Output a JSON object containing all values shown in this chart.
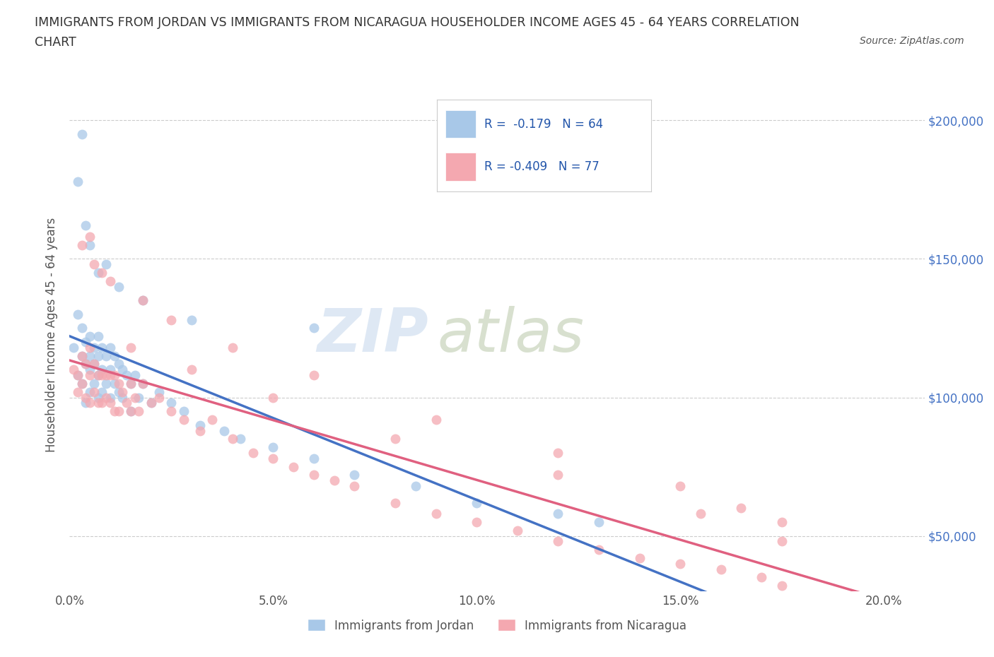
{
  "title_line1": "IMMIGRANTS FROM JORDAN VS IMMIGRANTS FROM NICARAGUA HOUSEHOLDER INCOME AGES 45 - 64 YEARS CORRELATION",
  "title_line2": "CHART",
  "source_text": "Source: ZipAtlas.com",
  "ylabel": "Householder Income Ages 45 - 64 years",
  "xlim": [
    0.0,
    0.21
  ],
  "ylim": [
    30000,
    215000
  ],
  "yticks": [
    50000,
    100000,
    150000,
    200000
  ],
  "ytick_labels": [
    "$50,000",
    "$100,000",
    "$150,000",
    "$200,000"
  ],
  "xticks": [
    0.0,
    0.05,
    0.1,
    0.15,
    0.2
  ],
  "xtick_labels": [
    "0.0%",
    "5.0%",
    "10.0%",
    "15.0%",
    "20.0%"
  ],
  "jordan_color": "#a8c8e8",
  "nicaragua_color": "#f4a8b0",
  "jordan_line_color": "#4472c4",
  "nicaragua_line_color": "#e06080",
  "jordan_R": -0.179,
  "jordan_N": 64,
  "nicaragua_R": -0.409,
  "nicaragua_N": 77,
  "background_color": "#ffffff",
  "grid_color": "#cccccc",
  "watermark_zip": "ZIP",
  "watermark_atlas": "atlas",
  "legend_label_jordan": "Immigrants from Jordan",
  "legend_label_nicaragua": "Immigrants from Nicaragua",
  "jordan_x": [
    0.001,
    0.002,
    0.002,
    0.003,
    0.003,
    0.003,
    0.004,
    0.004,
    0.004,
    0.005,
    0.005,
    0.005,
    0.005,
    0.006,
    0.006,
    0.006,
    0.007,
    0.007,
    0.007,
    0.007,
    0.008,
    0.008,
    0.008,
    0.009,
    0.009,
    0.01,
    0.01,
    0.01,
    0.011,
    0.011,
    0.012,
    0.012,
    0.013,
    0.013,
    0.014,
    0.015,
    0.015,
    0.016,
    0.017,
    0.018,
    0.02,
    0.022,
    0.025,
    0.028,
    0.032,
    0.038,
    0.042,
    0.05,
    0.06,
    0.07,
    0.085,
    0.1,
    0.12,
    0.13,
    0.002,
    0.003,
    0.004,
    0.005,
    0.007,
    0.009,
    0.012,
    0.018,
    0.03,
    0.06
  ],
  "jordan_y": [
    118000,
    130000,
    108000,
    125000,
    115000,
    105000,
    120000,
    112000,
    98000,
    122000,
    115000,
    110000,
    102000,
    118000,
    112000,
    105000,
    122000,
    115000,
    108000,
    100000,
    118000,
    110000,
    102000,
    115000,
    105000,
    118000,
    110000,
    100000,
    115000,
    105000,
    112000,
    102000,
    110000,
    100000,
    108000,
    105000,
    95000,
    108000,
    100000,
    105000,
    98000,
    102000,
    98000,
    95000,
    90000,
    88000,
    85000,
    82000,
    78000,
    72000,
    68000,
    62000,
    58000,
    55000,
    178000,
    195000,
    162000,
    155000,
    145000,
    148000,
    140000,
    135000,
    128000,
    125000
  ],
  "nicaragua_x": [
    0.001,
    0.002,
    0.002,
    0.003,
    0.003,
    0.004,
    0.004,
    0.005,
    0.005,
    0.005,
    0.006,
    0.006,
    0.007,
    0.007,
    0.008,
    0.008,
    0.009,
    0.009,
    0.01,
    0.01,
    0.011,
    0.011,
    0.012,
    0.012,
    0.013,
    0.014,
    0.015,
    0.015,
    0.016,
    0.017,
    0.018,
    0.02,
    0.022,
    0.025,
    0.028,
    0.032,
    0.035,
    0.04,
    0.045,
    0.05,
    0.055,
    0.06,
    0.065,
    0.07,
    0.08,
    0.09,
    0.1,
    0.11,
    0.12,
    0.13,
    0.14,
    0.15,
    0.16,
    0.17,
    0.175,
    0.003,
    0.006,
    0.01,
    0.018,
    0.025,
    0.04,
    0.06,
    0.09,
    0.12,
    0.15,
    0.165,
    0.175,
    0.005,
    0.008,
    0.015,
    0.03,
    0.05,
    0.08,
    0.12,
    0.155,
    0.175
  ],
  "nicaragua_y": [
    110000,
    108000,
    102000,
    115000,
    105000,
    112000,
    100000,
    118000,
    108000,
    98000,
    112000,
    102000,
    108000,
    98000,
    108000,
    98000,
    108000,
    100000,
    108000,
    98000,
    108000,
    95000,
    105000,
    95000,
    102000,
    98000,
    105000,
    95000,
    100000,
    95000,
    105000,
    98000,
    100000,
    95000,
    92000,
    88000,
    92000,
    85000,
    80000,
    78000,
    75000,
    72000,
    70000,
    68000,
    62000,
    58000,
    55000,
    52000,
    48000,
    45000,
    42000,
    40000,
    38000,
    35000,
    32000,
    155000,
    148000,
    142000,
    135000,
    128000,
    118000,
    108000,
    92000,
    80000,
    68000,
    60000,
    55000,
    158000,
    145000,
    118000,
    110000,
    100000,
    85000,
    72000,
    58000,
    48000
  ]
}
